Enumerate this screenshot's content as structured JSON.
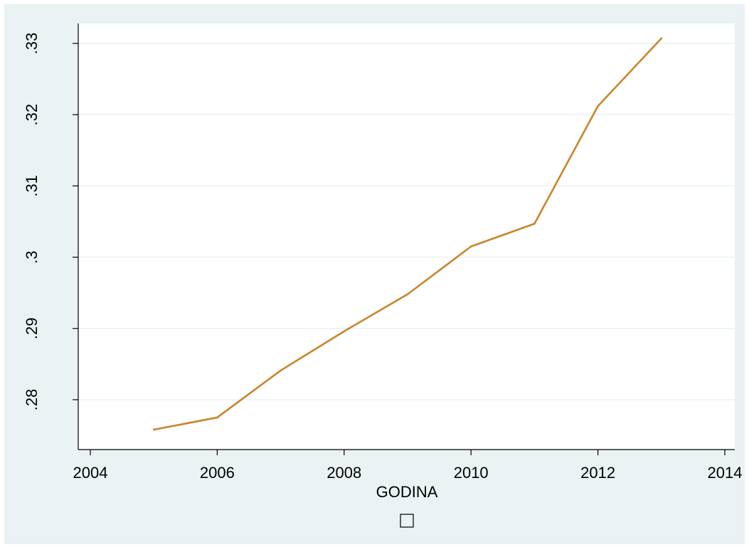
{
  "chart_data": {
    "type": "line",
    "xlabel": "GODINA",
    "ylabel": "",
    "legend_symbol": "□",
    "x": [
      2005,
      2006,
      2007,
      2008,
      2009,
      2010,
      2011,
      2012,
      2013
    ],
    "series": [
      {
        "values": [
          0.2758,
          0.2775,
          0.2841,
          0.2896,
          0.2948,
          0.3015,
          0.3047,
          0.3212,
          0.3307
        ]
      }
    ],
    "xticks": [
      2004,
      2006,
      2008,
      2010,
      2012,
      2014
    ],
    "xtick_labels": [
      "2004",
      "2006",
      "2008",
      "2010",
      "2012",
      "2014"
    ],
    "yticks": [
      0.28,
      0.29,
      0.3,
      0.31,
      0.32,
      0.33
    ],
    "ytick_labels": [
      ".28",
      ".29",
      ".3",
      ".31",
      ".32",
      ".33"
    ],
    "xlim": [
      2004,
      2014
    ],
    "ylim": [
      0.2745,
      0.331
    ],
    "grid": true,
    "colors": {
      "outer_background": "#eaf2f3",
      "plot_background": "#ffffff",
      "gridline": "#eaf2f3",
      "line": "#c8862a",
      "axis": "#000000"
    }
  }
}
